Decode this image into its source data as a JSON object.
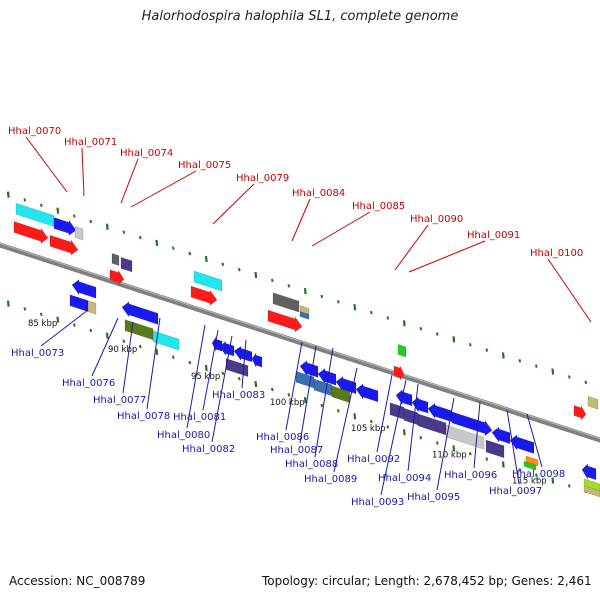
{
  "title": "Halorhodospira halophila SL1, complete genome",
  "footer": {
    "accession": "Accession: NC_008789",
    "topology": "Topology: circular; Length: 2,678,452 bp; Genes: 2,461"
  },
  "colors": {
    "axis": "#808080",
    "tick": "#1a7a1a",
    "top_label": "#cc0000",
    "bottom_label": "#1a1aaa",
    "gene_red": "#ff1a1a",
    "gene_blue": "#1a1aee",
    "gene_cyan": "#22e6ee",
    "gene_slate": "#4a3a8c",
    "gene_gray": "#c8c8c8",
    "gene_olive": "#5a7a1a",
    "gene_green": "#22cc22",
    "gene_tan": "#c8b878",
    "gene_steel": "#3a70b0",
    "gene_dark": "#606060",
    "gene_orange": "#ff8a1a",
    "gene_lime": "#a0e020"
  },
  "kbp_labels": [
    "85 kbp",
    "90 kbp",
    "95 kbp",
    "100 kbp",
    "105 kbp",
    "110 kbp",
    "115 kbp"
  ],
  "top_labels": [
    "Hhal_0070",
    "Hhal_0071",
    "Hhal_0074",
    "Hhal_0075",
    "Hhal_0079",
    "Hhal_0084",
    "Hhal_0085",
    "Hhal_0090",
    "Hhal_0091",
    "Hhal_0100"
  ],
  "bottom_labels": [
    "Hhal_0073",
    "Hhal_0076",
    "Hhal_0077",
    "Hhal_0078",
    "Hhal_0080",
    "Hhal_0081",
    "Hhal_0082",
    "Hhal_0083",
    "Hhal_0086",
    "Hhal_0087",
    "Hhal_0088",
    "Hhal_0089",
    "Hhal_0092",
    "Hhal_0093",
    "Hhal_0094",
    "Hhal_0095",
    "Hhal_0096",
    "Hhal_0097",
    "Hhal_0098"
  ]
}
